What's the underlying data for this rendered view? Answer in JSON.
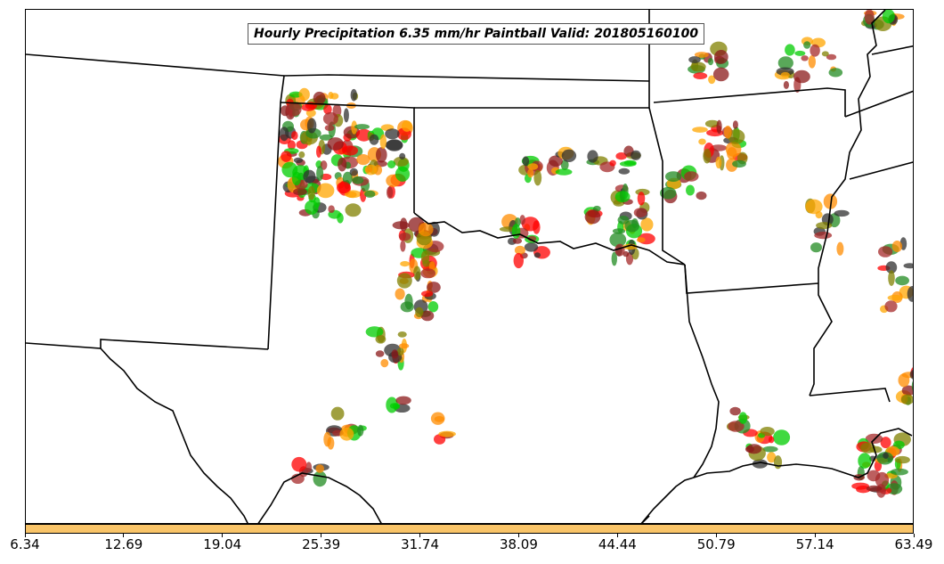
{
  "title": "Hourly Precipitation 6.35 mm/hr Paintball Valid: 201805160100",
  "colorbar": {
    "fill_color": "#f9c468",
    "ticks": [
      "6.34",
      "12.69",
      "19.04",
      "25.39",
      "31.74",
      "38.09",
      "44.44",
      "50.79",
      "57.14",
      "63.49"
    ]
  },
  "paintball_colors": [
    "#ff0000",
    "#ff8c00",
    "#ffa500",
    "#00cc00",
    "#228b22",
    "#808000",
    "#8b1a1a",
    "#a52a2a",
    "#303030"
  ],
  "map": {
    "region": "South-Central United States",
    "boundaries": "state lines and Gulf coastline"
  }
}
